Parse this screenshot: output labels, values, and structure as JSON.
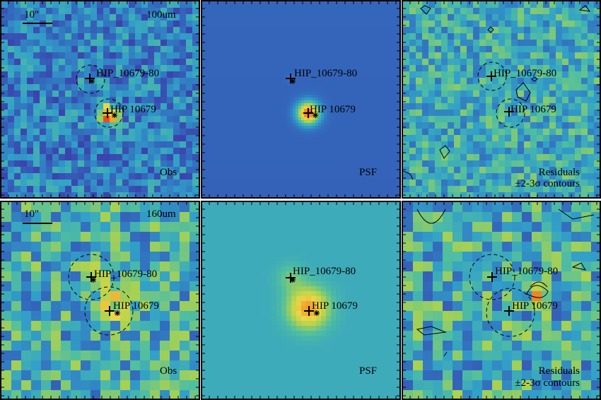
{
  "figure": {
    "rows": [
      {
        "band": "100um",
        "scale_label": "10\"",
        "panels": [
          {
            "id": "obs",
            "label": "Obs"
          },
          {
            "id": "psf",
            "label": "PSF"
          },
          {
            "id": "res",
            "label_line1": "Residuals",
            "label_line2": "±2-3σ contours"
          }
        ],
        "sources": [
          {
            "name": "HIP_10679-80"
          },
          {
            "name": "HIP 10679"
          }
        ]
      },
      {
        "band": "160um",
        "scale_label": "10\"",
        "panels": [
          {
            "id": "obs",
            "label": "Obs"
          },
          {
            "id": "psf",
            "label": "PSF"
          },
          {
            "id": "res",
            "label_line1": "Residuals",
            "label_line2": "±2-3σ contours"
          }
        ],
        "sources": [
          {
            "name": "HIP_10679-80"
          },
          {
            "name": "HIP 10679"
          }
        ]
      }
    ],
    "colors": {
      "background_low": "#2f2a8c",
      "mid": "#3aa0c8",
      "high": "#e8d84a",
      "peak": "#e83a1e",
      "psf_bg_top": "#3557b0",
      "psf_bg_bottom": "#4a92c4"
    }
  }
}
